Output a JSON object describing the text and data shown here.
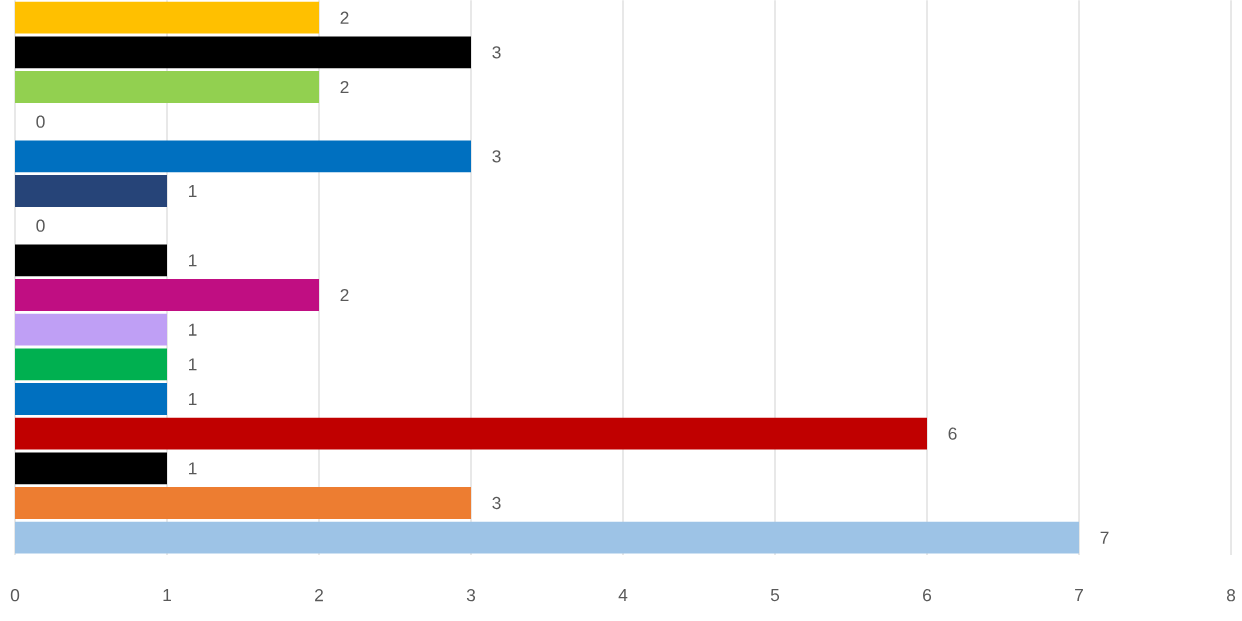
{
  "chart_data": {
    "type": "bar",
    "orientation": "horizontal",
    "categories": [
      null,
      null,
      null,
      null,
      null,
      null,
      null,
      null,
      null,
      null,
      null,
      null,
      null,
      null,
      null,
      null
    ],
    "values": [
      2,
      3,
      2,
      0,
      3,
      1,
      0,
      1,
      2,
      1,
      1,
      1,
      6,
      1,
      3,
      7
    ],
    "colors": [
      "#ffc000",
      "#000000",
      "#92d050",
      "#a5a5a5",
      "#0070c0",
      "#264478",
      "#7f7f7f",
      "#000000",
      "#c00e82",
      "#bf9ff5",
      "#00b050",
      "#0070c0",
      "#c00000",
      "#000000",
      "#ed7d31",
      "#9dc3e6"
    ],
    "xlim": [
      0,
      8
    ],
    "xticks": [
      0,
      1,
      2,
      3,
      4,
      5,
      6,
      7,
      8
    ],
    "grid": "x",
    "tick_labels": "x",
    "data_labels": true
  }
}
